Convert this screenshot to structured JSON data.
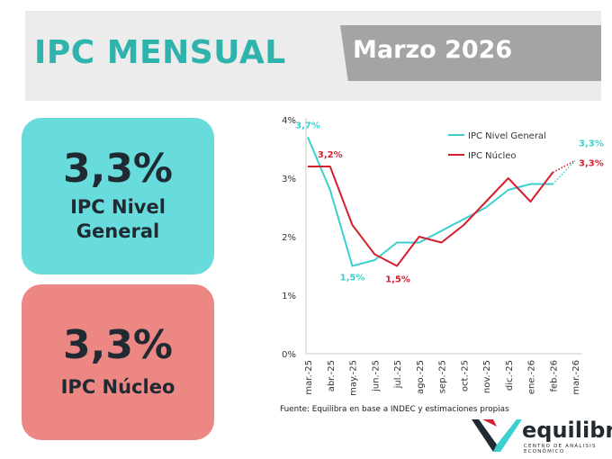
{
  "header": {
    "title": "IPC MENSUAL",
    "period": "Marzo 2026",
    "title_color": "#2fb3ad",
    "band_color": "#ececec",
    "period_box_color": "#a4a4a4"
  },
  "cards": {
    "general": {
      "value": "3,3%",
      "label_line1": "IPC Nivel",
      "label_line2": "General",
      "color": "#68dcdc"
    },
    "nucleo": {
      "value": "3,3%",
      "label": "IPC Núcleo",
      "color": "#ec8784"
    }
  },
  "chart_data": {
    "type": "line",
    "categories": [
      "mar.-25",
      "abr.-25",
      "may.-25",
      "jun.-25",
      "jul.-25",
      "ago.-25",
      "sep.-25",
      "oct.-25",
      "nov.-25",
      "dic.-25",
      "ene.-26",
      "feb.-26",
      "mar.-26"
    ],
    "ylim": [
      0,
      4
    ],
    "yticks": [
      0,
      1,
      2,
      3,
      4
    ],
    "ytick_labels": [
      "0%",
      "1%",
      "2%",
      "3%",
      "4%"
    ],
    "grid": false,
    "legend_position": "top-right",
    "series": [
      {
        "name": "IPC Nivel General",
        "color": "#3ccfcf",
        "values": [
          3.7,
          2.8,
          1.5,
          1.6,
          1.9,
          1.9,
          2.1,
          2.3,
          2.5,
          2.8,
          2.9,
          2.9,
          3.3
        ],
        "last_segment": "dotted"
      },
      {
        "name": "IPC Núcleo",
        "color": "#d51f2e",
        "values": [
          3.2,
          3.2,
          2.2,
          1.7,
          1.5,
          2.0,
          1.9,
          2.2,
          2.6,
          3.0,
          2.6,
          3.1,
          3.3
        ],
        "last_segment": "dotted"
      }
    ],
    "annotations": [
      {
        "series": 0,
        "index": 0,
        "text": "3,7%"
      },
      {
        "series": 1,
        "index": 1,
        "text": "3,2%"
      },
      {
        "series": 0,
        "index": 2,
        "text": "1,5%"
      },
      {
        "series": 1,
        "index": 4,
        "text": "1,5%"
      },
      {
        "series": 0,
        "index": 12,
        "text": "3,3%"
      },
      {
        "series": 1,
        "index": 12,
        "text": "3,3%"
      }
    ]
  },
  "source": "Fuente: Equilibra en base a INDEC y estimaciones propias",
  "logo": {
    "word": "equilibra",
    "tagline": "CENTRO DE ANÁLISIS ECONÓMICO",
    "color_dark": "#1f2a32",
    "color_teal": "#3ccfcf",
    "color_red": "#d51f2e"
  }
}
